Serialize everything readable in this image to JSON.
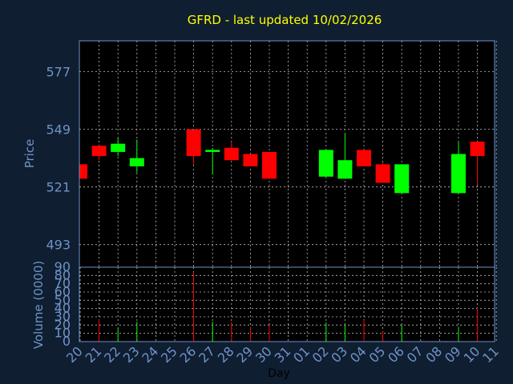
{
  "chart_data": {
    "type": "candlestick",
    "title": "GFRD - last updated 10/02/2026",
    "xlabel": "Day",
    "price_panel": {
      "ylabel": "Price",
      "ylim": [
        482,
        592
      ],
      "yticks": [
        493,
        521,
        549,
        577
      ]
    },
    "volume_panel": {
      "ylabel": "Volume (0000)",
      "ylim": [
        0,
        90
      ],
      "yticks": [
        0,
        10,
        20,
        30,
        40,
        50,
        60,
        70,
        80,
        90
      ]
    },
    "categories": [
      "20",
      "21",
      "22",
      "23",
      "24",
      "25",
      "26",
      "27",
      "28",
      "29",
      "30",
      "31",
      "01",
      "02",
      "03",
      "04",
      "05",
      "06",
      "07",
      "08",
      "09",
      "10",
      "11"
    ],
    "candles": [
      {
        "x": "20",
        "open": 532,
        "close": 525,
        "high": 532,
        "low": 525
      },
      {
        "x": "21",
        "open": 541,
        "close": 536,
        "high": 541,
        "low": 534
      },
      {
        "x": "22",
        "open": 538,
        "close": 542,
        "high": 545,
        "low": 536
      },
      {
        "x": "23",
        "open": 531,
        "close": 535,
        "high": 544,
        "low": 528
      },
      {
        "x": "26",
        "open": 549,
        "close": 536,
        "high": 549,
        "low": 532
      },
      {
        "x": "27",
        "open": 538,
        "close": 539,
        "high": 540,
        "low": 527
      },
      {
        "x": "28",
        "open": 540,
        "close": 534,
        "high": 543,
        "low": 534
      },
      {
        "x": "29",
        "open": 537,
        "close": 531,
        "high": 537,
        "low": 531
      },
      {
        "x": "30",
        "open": 538,
        "close": 525,
        "high": 538,
        "low": 525
      },
      {
        "x": "02",
        "open": 526,
        "close": 539,
        "high": 539,
        "low": 526
      },
      {
        "x": "03",
        "open": 525,
        "close": 534,
        "high": 547,
        "low": 525
      },
      {
        "x": "04",
        "open": 539,
        "close": 531,
        "high": 539,
        "low": 531
      },
      {
        "x": "05",
        "open": 532,
        "close": 523,
        "high": 533,
        "low": 523
      },
      {
        "x": "06",
        "open": 518,
        "close": 532,
        "high": 532,
        "low": 518
      },
      {
        "x": "09",
        "open": 518,
        "close": 537,
        "high": 543,
        "low": 518
      },
      {
        "x": "10",
        "open": 543,
        "close": 536,
        "high": 543,
        "low": 522
      }
    ],
    "volume": [
      {
        "x": "21",
        "value": 27,
        "dir": "down"
      },
      {
        "x": "22",
        "value": 16,
        "dir": "up"
      },
      {
        "x": "23",
        "value": 24,
        "dir": "up"
      },
      {
        "x": "26",
        "value": 84,
        "dir": "down"
      },
      {
        "x": "27",
        "value": 24,
        "dir": "up"
      },
      {
        "x": "28",
        "value": 23,
        "dir": "down"
      },
      {
        "x": "29",
        "value": 17,
        "dir": "down"
      },
      {
        "x": "30",
        "value": 20,
        "dir": "down"
      },
      {
        "x": "02",
        "value": 23,
        "dir": "up"
      },
      {
        "x": "03",
        "value": 20,
        "dir": "up"
      },
      {
        "x": "04",
        "value": 26,
        "dir": "down"
      },
      {
        "x": "05",
        "value": 12,
        "dir": "down"
      },
      {
        "x": "06",
        "value": 20,
        "dir": "up"
      },
      {
        "x": "09",
        "value": 18,
        "dir": "up"
      },
      {
        "x": "10",
        "value": 41,
        "dir": "down"
      }
    ],
    "colors": {
      "background": "#0f1e30",
      "plot_background": "#000000",
      "up": "#00ff00",
      "down": "#ff0000",
      "grid": "#bbbbbb",
      "axis": "#6f93c9",
      "title": "#ffff00"
    },
    "grid": true
  }
}
